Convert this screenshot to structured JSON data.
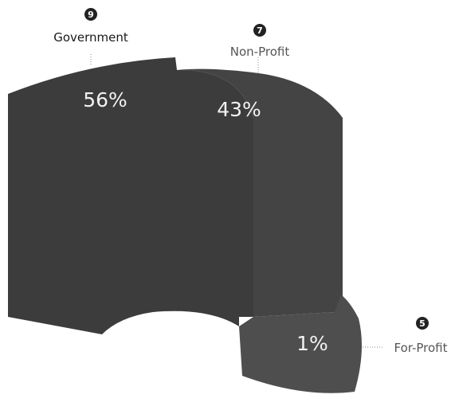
{
  "chart_data": {
    "type": "pie",
    "categories": [
      "Government",
      "Non-Profit",
      "For-Profit"
    ],
    "values": [
      56,
      43,
      1
    ],
    "value_labels": [
      "56%",
      "43%",
      "1%"
    ],
    "markers": [
      "9",
      "7",
      "5"
    ],
    "colors": [
      "#3c3c3c",
      "#444444",
      "#4e4e4e"
    ]
  }
}
